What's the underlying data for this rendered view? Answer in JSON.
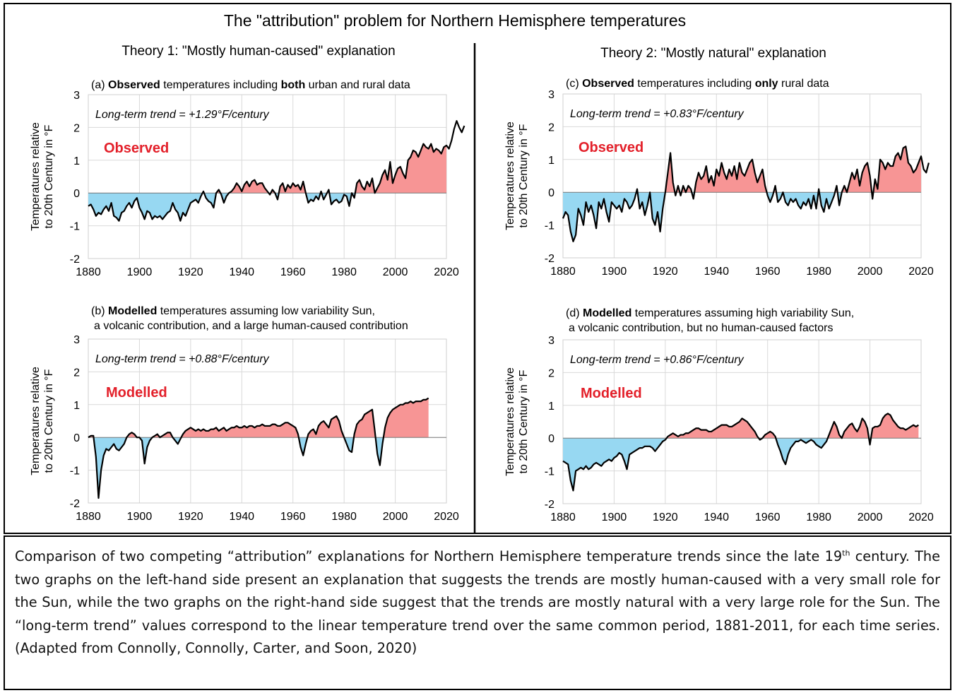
{
  "figure": {
    "title": "The \"attribution\" problem for Northern Hemisphere temperatures",
    "left_heading": "Theory 1: \"Mostly human-caused\" explanation",
    "right_heading": "Theory 2: \"Mostly natural\" explanation"
  },
  "chart_data": [
    {
      "id": "a",
      "type": "area",
      "caption_parts": [
        {
          "text": "(a) ",
          "bold": false
        },
        {
          "text": "Observed",
          "bold": true
        },
        {
          "text": " temperatures including ",
          "bold": false
        },
        {
          "text": "both",
          "bold": true
        },
        {
          "text": " urban and rural data",
          "bold": false
        }
      ],
      "caption_line2": "",
      "trend_label": "Long-term trend = +1.29°F/century",
      "series_label": "Observed",
      "ylabel": [
        "Temperatures relative",
        "to 20th Century in °F"
      ],
      "xlim": [
        1880,
        2020
      ],
      "ylim": [
        -2,
        3
      ],
      "xticks": [
        1880,
        1900,
        1920,
        1940,
        1960,
        1980,
        2000,
        2020
      ],
      "yticks": [
        -2,
        -1,
        0,
        1,
        2,
        3
      ],
      "grid": true,
      "start_year": 1880,
      "values": [
        -0.4,
        -0.35,
        -0.5,
        -0.7,
        -0.6,
        -0.65,
        -0.5,
        -0.4,
        -0.55,
        -0.3,
        -0.7,
        -0.75,
        -0.85,
        -0.6,
        -0.55,
        -0.4,
        -0.3,
        -0.45,
        -0.25,
        -0.15,
        -0.45,
        -0.6,
        -0.8,
        -0.55,
        -0.6,
        -0.8,
        -0.7,
        -0.75,
        -0.7,
        -0.8,
        -0.7,
        -0.6,
        -0.55,
        -0.3,
        -0.5,
        -0.6,
        -0.85,
        -0.6,
        -0.7,
        -0.5,
        -0.3,
        -0.25,
        -0.2,
        -0.3,
        -0.1,
        0.05,
        -0.15,
        -0.25,
        -0.3,
        -0.45,
        0.0,
        0.1,
        -0.05,
        -0.3,
        -0.1,
        0.0,
        0.05,
        0.15,
        0.3,
        0.2,
        0.05,
        0.25,
        0.35,
        0.2,
        0.35,
        0.4,
        0.25,
        0.3,
        0.3,
        0.15,
        0.05,
        -0.05,
        0.1,
        0.0,
        -0.2,
        0.2,
        0.3,
        0.05,
        0.25,
        0.15,
        0.3,
        0.2,
        0.25,
        0.1,
        0.35,
        0.0,
        -0.3,
        -0.2,
        -0.25,
        -0.1,
        -0.2,
        0.05,
        -0.2,
        -0.05,
        0.1,
        -0.35,
        -0.25,
        -0.2,
        -0.3,
        -0.25,
        -0.05,
        -0.1,
        -0.4,
        0.0,
        -0.15,
        0.3,
        0.4,
        0.2,
        0.1,
        0.35,
        0.2,
        0.45,
        0.0,
        0.15,
        0.3,
        0.55,
        0.7,
        0.4,
        0.95,
        0.3,
        0.55,
        0.75,
        0.8,
        0.6,
        0.45,
        1.0,
        1.1,
        1.3,
        1.25,
        1.1,
        1.3,
        1.5,
        1.4,
        1.35,
        1.5,
        1.25,
        1.35,
        1.3,
        1.2,
        1.4,
        1.45,
        1.35,
        1.6,
        1.95,
        2.2,
        2.0,
        1.85,
        2.05
      ]
    },
    {
      "id": "c",
      "type": "area",
      "caption_parts": [
        {
          "text": "(c) ",
          "bold": false
        },
        {
          "text": "Observed",
          "bold": true
        },
        {
          "text": " temperatures including ",
          "bold": false
        },
        {
          "text": "only",
          "bold": true
        },
        {
          "text": " rural data",
          "bold": false
        }
      ],
      "caption_line2": "",
      "trend_label": "Long-term trend = +0.83°F/century",
      "series_label": "Observed",
      "ylabel": [
        "Temperatures relative",
        "to 20th Century in °F"
      ],
      "xlim": [
        1880,
        2020
      ],
      "ylim": [
        -2,
        3
      ],
      "xticks": [
        1880,
        1900,
        1920,
        1940,
        1960,
        1980,
        2000,
        2020
      ],
      "yticks": [
        -2,
        -1,
        0,
        1,
        2,
        3
      ],
      "grid": true,
      "start_year": 1880,
      "values": [
        -0.8,
        -0.6,
        -0.7,
        -1.2,
        -1.5,
        -1.3,
        -0.5,
        -0.7,
        -1.0,
        -0.3,
        -0.6,
        -0.4,
        -0.7,
        -1.1,
        -0.3,
        -0.5,
        -0.2,
        -0.6,
        -0.9,
        -0.3,
        -0.4,
        -0.5,
        -0.4,
        -0.6,
        -0.2,
        -0.3,
        -0.5,
        -0.4,
        -0.2,
        0.1,
        -0.5,
        -0.3,
        -0.7,
        -0.4,
        0.0,
        -0.8,
        -1.0,
        -0.6,
        -1.2,
        -0.5,
        0.0,
        0.6,
        1.2,
        0.3,
        -0.1,
        0.2,
        -0.1,
        0.2,
        0.0,
        0.2,
        0.1,
        -0.2,
        0.3,
        0.6,
        0.4,
        0.5,
        0.8,
        0.3,
        0.5,
        0.2,
        0.7,
        0.5,
        0.9,
        0.6,
        0.4,
        0.7,
        0.5,
        0.8,
        0.4,
        0.9,
        0.6,
        0.5,
        0.7,
        0.9,
        1.0,
        0.6,
        0.3,
        0.5,
        0.7,
        0.2,
        -0.1,
        -0.3,
        -0.1,
        0.2,
        -0.3,
        -0.2,
        0.0,
        -0.3,
        -0.4,
        -0.2,
        -0.3,
        -0.2,
        -0.4,
        -0.5,
        -0.3,
        -0.4,
        -0.2,
        -0.5,
        -0.1,
        -0.5,
        0.1,
        -0.4,
        -0.6,
        -0.2,
        -0.5,
        -0.3,
        -0.1,
        0.2,
        -0.4,
        0.0,
        0.2,
        0.0,
        0.3,
        0.6,
        0.4,
        0.7,
        0.2,
        0.6,
        0.8,
        0.9,
        0.5,
        -0.2,
        0.4,
        0.1,
        1.0,
        0.9,
        0.7,
        0.9,
        0.8,
        0.8,
        1.1,
        1.2,
        1.0,
        1.35,
        1.4,
        0.9,
        0.8,
        0.6,
        0.7,
        0.9,
        1.1,
        0.7,
        0.6,
        0.9
      ]
    },
    {
      "id": "b",
      "type": "area",
      "caption_parts": [
        {
          "text": "(b) ",
          "bold": false
        },
        {
          "text": "Modelled",
          "bold": true
        },
        {
          "text": " temperatures assuming low variability Sun,",
          "bold": false
        }
      ],
      "caption_line2": "a volcanic contribution, and a large human-caused contribution",
      "trend_label": "Long-term trend = +0.88°F/century",
      "series_label": "Modelled",
      "ylabel": [
        "Temperatures relative",
        "to 20th Century in °F"
      ],
      "xlim": [
        1880,
        2020
      ],
      "ylim": [
        -2,
        3
      ],
      "xticks": [
        1880,
        1900,
        1920,
        1940,
        1960,
        1980,
        2000,
        2020
      ],
      "yticks": [
        -2,
        -1,
        0,
        1,
        2,
        3
      ],
      "grid": true,
      "start_year": 1880,
      "values": [
        0.0,
        0.05,
        0.05,
        -0.6,
        -1.85,
        -1.0,
        -0.55,
        -0.35,
        -0.4,
        -0.3,
        -0.2,
        -0.35,
        -0.4,
        -0.3,
        -0.2,
        0.0,
        0.1,
        0.15,
        0.1,
        0.0,
        0.0,
        -0.1,
        -0.8,
        -0.3,
        -0.1,
        0.0,
        0.05,
        0.1,
        0.0,
        0.05,
        0.1,
        0.15,
        0.15,
        0.0,
        -0.1,
        -0.2,
        -0.05,
        0.1,
        0.2,
        0.25,
        0.3,
        0.25,
        0.2,
        0.25,
        0.2,
        0.25,
        0.2,
        0.2,
        0.25,
        0.25,
        0.3,
        0.2,
        0.25,
        0.3,
        0.2,
        0.25,
        0.3,
        0.3,
        0.35,
        0.3,
        0.3,
        0.35,
        0.3,
        0.35,
        0.35,
        0.3,
        0.35,
        0.35,
        0.4,
        0.35,
        0.35,
        0.35,
        0.4,
        0.4,
        0.35,
        0.35,
        0.4,
        0.45,
        0.45,
        0.4,
        0.35,
        0.3,
        0.1,
        -0.3,
        -0.55,
        -0.2,
        0.1,
        0.2,
        0.25,
        0.1,
        0.35,
        0.45,
        0.5,
        0.4,
        0.3,
        0.55,
        0.6,
        0.65,
        0.5,
        0.2,
        0.0,
        -0.2,
        -0.4,
        -0.45,
        0.1,
        0.4,
        0.5,
        0.55,
        0.7,
        0.75,
        0.8,
        0.85,
        0.2,
        -0.5,
        -0.85,
        -0.2,
        0.3,
        0.6,
        0.75,
        0.85,
        0.9,
        0.95,
        1.0,
        1.0,
        1.05,
        1.05,
        1.1,
        1.05,
        1.1,
        1.1,
        1.1,
        1.15,
        1.15,
        1.2
      ]
    },
    {
      "id": "d",
      "type": "area",
      "caption_parts": [
        {
          "text": "(d) ",
          "bold": false
        },
        {
          "text": "Modelled",
          "bold": true
        },
        {
          "text": " temperatures assuming high variability Sun,",
          "bold": false
        }
      ],
      "caption_line2": "a volcanic contribution, but no human-caused factors",
      "trend_label": "Long-term trend = +0.86°F/century",
      "series_label": "Modelled",
      "ylabel": [
        "Temperatures relative",
        "to 20th Century in °F"
      ],
      "xlim": [
        1880,
        2020
      ],
      "ylim": [
        -2,
        3
      ],
      "xticks": [
        1880,
        1900,
        1920,
        1940,
        1960,
        1980,
        2000,
        2020
      ],
      "yticks": [
        -2,
        -1,
        0,
        1,
        2,
        3
      ],
      "grid": true,
      "start_year": 1880,
      "values": [
        -0.7,
        -0.75,
        -0.8,
        -1.3,
        -1.6,
        -1.0,
        -0.95,
        -0.9,
        -0.95,
        -0.85,
        -0.95,
        -0.9,
        -0.8,
        -0.75,
        -0.8,
        -0.85,
        -0.75,
        -0.7,
        -0.65,
        -0.7,
        -0.6,
        -0.55,
        -0.45,
        -0.5,
        -0.7,
        -0.95,
        -0.5,
        -0.45,
        -0.4,
        -0.35,
        -0.3,
        -0.3,
        -0.25,
        -0.25,
        -0.25,
        -0.3,
        -0.4,
        -0.3,
        -0.2,
        -0.1,
        -0.05,
        0.05,
        0.1,
        0.15,
        0.1,
        0.05,
        0.1,
        0.1,
        0.15,
        0.15,
        0.2,
        0.25,
        0.3,
        0.3,
        0.25,
        0.25,
        0.25,
        0.2,
        0.2,
        0.25,
        0.3,
        0.35,
        0.4,
        0.4,
        0.4,
        0.35,
        0.35,
        0.4,
        0.45,
        0.5,
        0.6,
        0.55,
        0.5,
        0.4,
        0.3,
        0.2,
        0.05,
        -0.05,
        0.0,
        0.1,
        0.15,
        0.2,
        0.15,
        0.05,
        -0.2,
        -0.4,
        -0.65,
        -0.8,
        -0.5,
        -0.3,
        -0.2,
        -0.1,
        -0.1,
        -0.05,
        -0.1,
        -0.15,
        -0.1,
        -0.05,
        -0.1,
        -0.2,
        -0.25,
        -0.3,
        -0.2,
        -0.1,
        0.1,
        0.3,
        0.5,
        0.35,
        0.1,
        0.0,
        0.2,
        0.3,
        0.4,
        0.45,
        0.3,
        0.2,
        0.35,
        0.6,
        0.5,
        0.3,
        -0.2,
        0.3,
        0.35,
        0.35,
        0.4,
        0.6,
        0.7,
        0.75,
        0.7,
        0.55,
        0.45,
        0.35,
        0.3,
        0.3,
        0.25,
        0.3,
        0.35,
        0.4,
        0.35,
        0.4
      ]
    }
  ],
  "caption": {
    "part1": "Comparison of two competing “attribution” explanations for Northern Hemisphere temperature trends since the late 19",
    "sup": "th",
    "part2": " century. The two graphs on the left-hand side present an explanation that suggests the trends are mostly human-caused with a very small role for the Sun, while the two graphs on the right-hand side suggest that the trends are mostly natural with a very large role for the Sun. The “long-term trend” values correspond to the linear temperature trend over the same common period, 1881-2011, for each time series. (Adapted from Connolly, Connolly, Carter, and Soon, 2020)"
  },
  "colors": {
    "positive_fill": "#f79595",
    "negative_fill": "#97d8f2",
    "line": "#000000",
    "series_label": "#e3202a",
    "grid": "#d9d9d9",
    "divider": "#000000"
  }
}
